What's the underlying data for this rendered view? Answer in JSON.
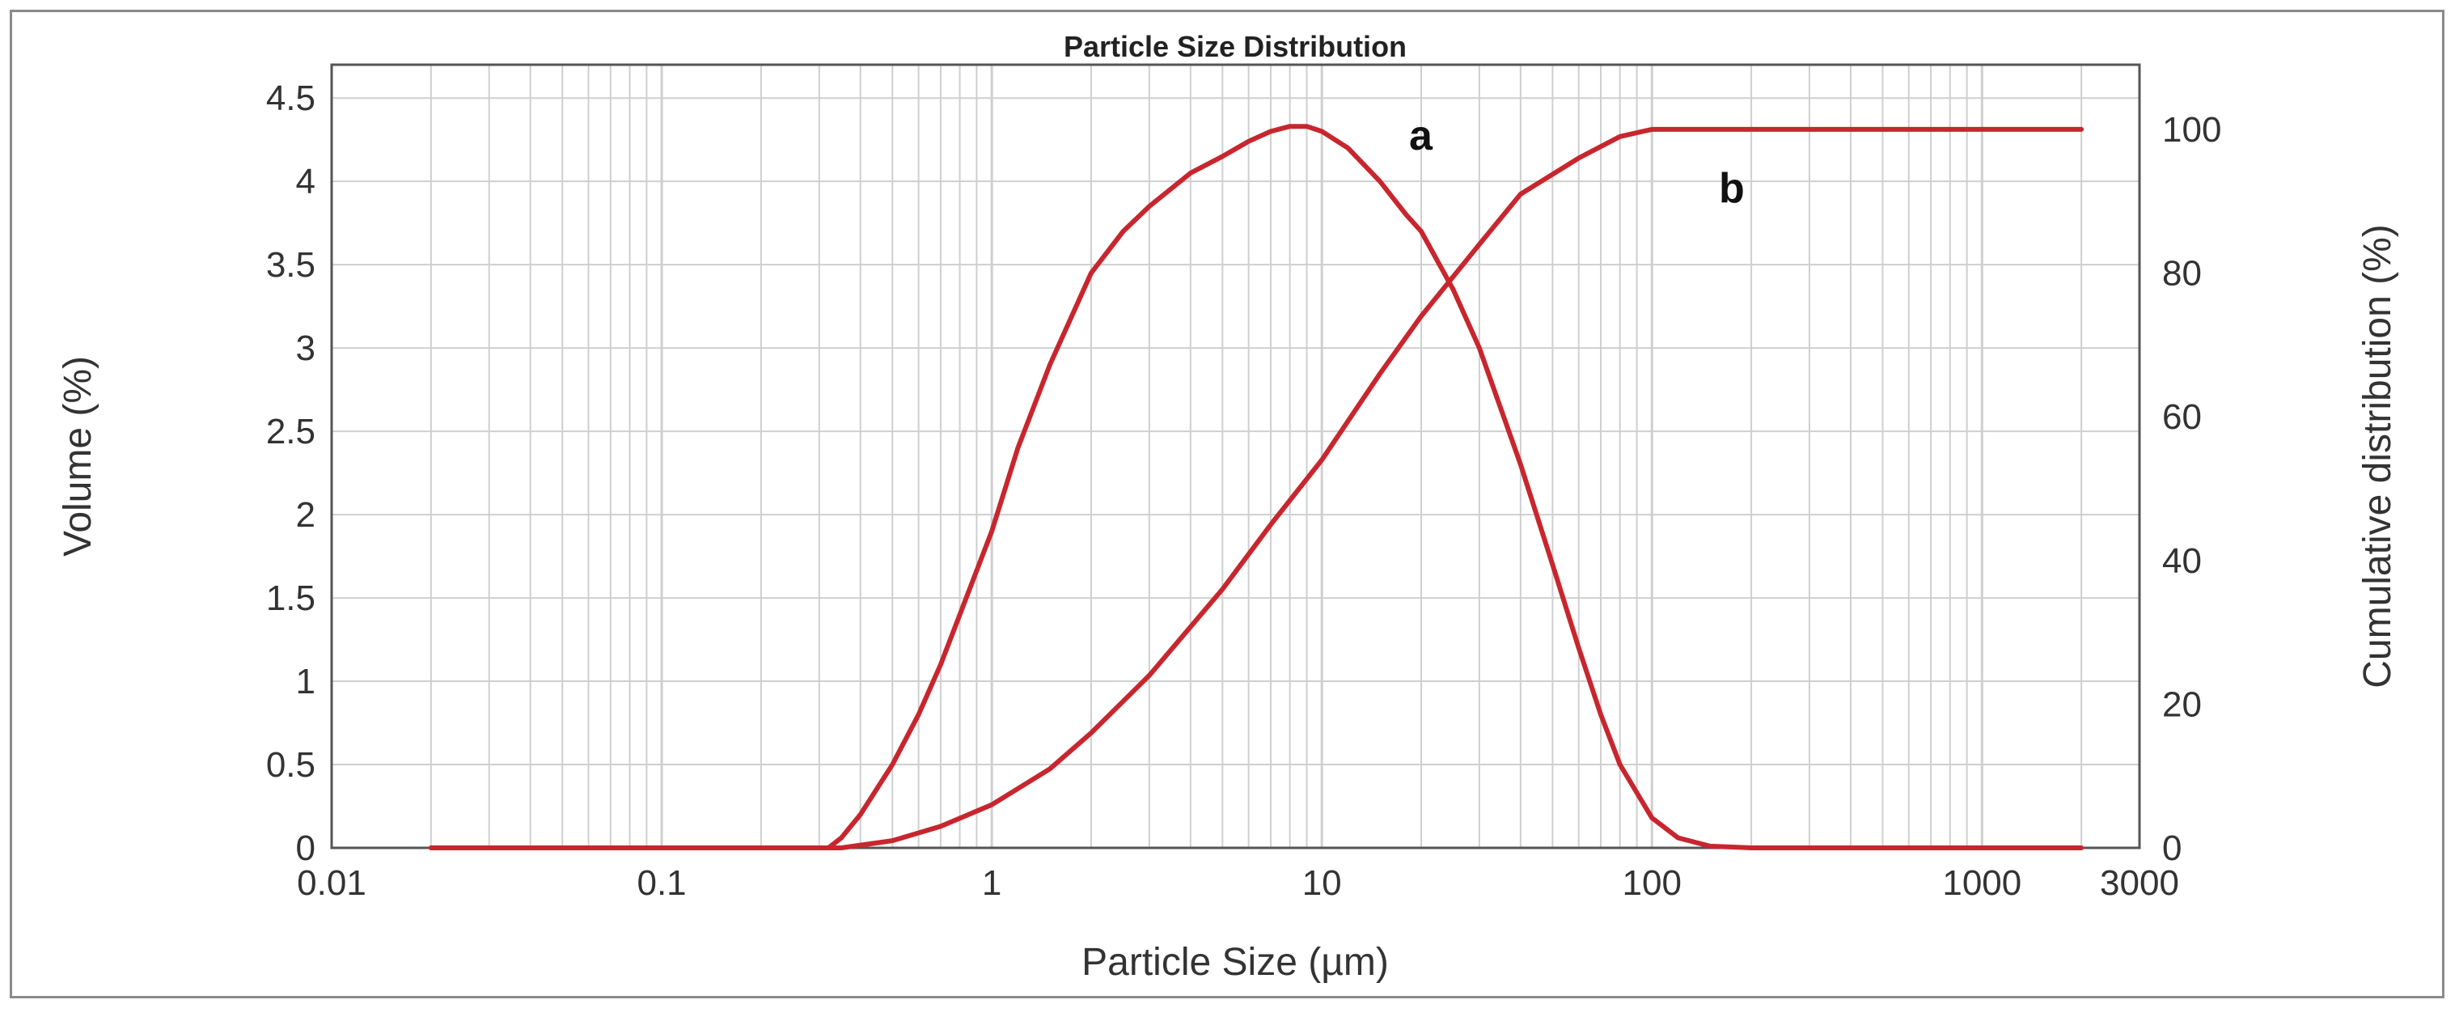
{
  "chart_data": {
    "type": "line",
    "title": "Particle Size Distribution",
    "xlabel": "Particle Size (µm)",
    "ylabel": "Volume (%)",
    "y2label": "Cumulative distribution (%)",
    "x_scale": "log",
    "xlim": [
      0.01,
      3000
    ],
    "ylim": [
      0,
      4.7
    ],
    "y2lim": [
      0,
      109
    ],
    "grid": true,
    "line_color": "#c8262e",
    "x_ticks": [
      0.01,
      0.1,
      1,
      10,
      100,
      1000,
      3000
    ],
    "x_tick_labels": [
      "0.01",
      "0.1",
      "1",
      "10",
      "100",
      "1000",
      "3000"
    ],
    "y_ticks": [
      0,
      0.5,
      1,
      1.5,
      2,
      2.5,
      3,
      3.5,
      4,
      4.5
    ],
    "y_tick_labels": [
      "0",
      "0.5",
      "1",
      "1.5",
      "2",
      "2.5",
      "3",
      "3.5",
      "4",
      "4.5"
    ],
    "y2_ticks": [
      0,
      20,
      40,
      60,
      80,
      100
    ],
    "y2_tick_labels": [
      "0",
      "20",
      "40",
      "60",
      "80",
      "100"
    ],
    "series": [
      {
        "name": "a",
        "axis": "left",
        "x": [
          0.02,
          0.1,
          0.3,
          0.32,
          0.35,
          0.4,
          0.5,
          0.6,
          0.7,
          0.8,
          1.0,
          1.2,
          1.5,
          2.0,
          2.5,
          3.0,
          4.0,
          5.0,
          6.0,
          7.0,
          8.0,
          9.0,
          10,
          12,
          15,
          18,
          20,
          25,
          30,
          40,
          50,
          60,
          70,
          80,
          100,
          120,
          150,
          200,
          500,
          2000
        ],
        "y": [
          0,
          0,
          0,
          0,
          0.06,
          0.2,
          0.5,
          0.8,
          1.1,
          1.4,
          1.9,
          2.4,
          2.9,
          3.45,
          3.7,
          3.85,
          4.05,
          4.15,
          4.24,
          4.3,
          4.33,
          4.33,
          4.3,
          4.2,
          4.0,
          3.8,
          3.7,
          3.35,
          3.0,
          2.3,
          1.7,
          1.2,
          0.8,
          0.5,
          0.18,
          0.06,
          0.01,
          0,
          0,
          0
        ]
      },
      {
        "name": "b",
        "axis": "right",
        "x": [
          0.02,
          0.1,
          0.3,
          0.35,
          0.5,
          0.7,
          1.0,
          1.5,
          2.0,
          3.0,
          5.0,
          7.0,
          10,
          15,
          20,
          30,
          40,
          60,
          80,
          100,
          150,
          300,
          1000,
          2000
        ],
        "y": [
          0,
          0,
          0,
          0,
          1,
          3,
          6,
          11,
          16,
          24,
          36,
          45,
          54,
          66,
          74,
          84,
          91,
          96,
          99,
          100,
          100,
          100,
          100,
          100
        ]
      }
    ]
  }
}
